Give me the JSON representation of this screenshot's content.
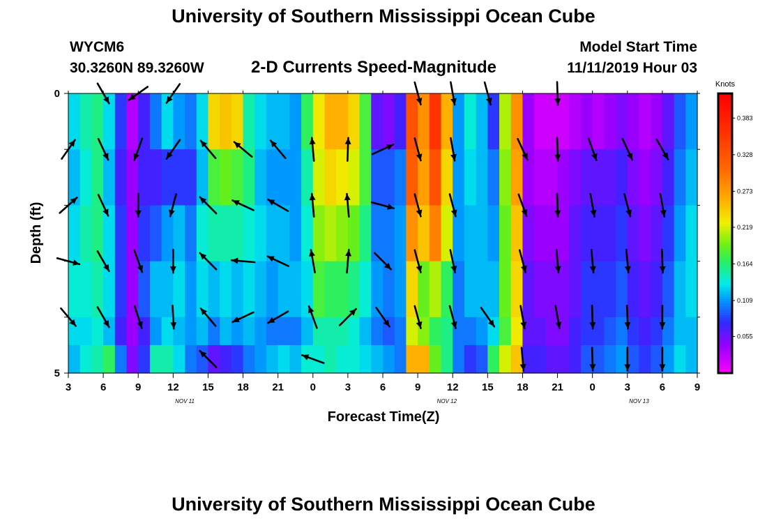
{
  "header": {
    "title": "University of Southern Mississippi Ocean Cube",
    "station_id": "WYCM6",
    "coords": "30.3260N 89.3260W",
    "subtitle": "2-D Currents Speed-Magnitude",
    "model_start_label": "Model Start Time",
    "model_start_value": "11/11/2019 Hour 03"
  },
  "footer": {
    "title": "University of Southern Mississippi Ocean Cube"
  },
  "chart_data": {
    "type": "heatmap",
    "title": "2-D Currents Speed-Magnitude",
    "xlabel": "Forecast Time(Z)",
    "ylabel": "Depth (ft)",
    "x_hours_range": [
      0,
      54
    ],
    "y_range": [
      0,
      5
    ],
    "y_ticks": [
      "0",
      "5"
    ],
    "x_ticks": [
      "3",
      "6",
      "9",
      "12",
      "15",
      "18",
      "21",
      "0",
      "3",
      "6",
      "9",
      "12",
      "15",
      "18",
      "21",
      "0",
      "3",
      "6",
      "9"
    ],
    "day_labels": [
      {
        "label": "NOV 11",
        "hour": 10
      },
      {
        "label": "NOV 12",
        "hour": 32.5
      },
      {
        "label": "NOV 13",
        "hour": 49
      }
    ],
    "colorbar": {
      "title": "Knots",
      "min": 0.0,
      "max": 0.42,
      "ticks": [
        "0.055",
        "0.109",
        "0.164",
        "0.219",
        "0.273",
        "0.328",
        "0.383"
      ],
      "tick_values": [
        0.055,
        0.109,
        0.164,
        0.219,
        0.273,
        0.328,
        0.383
      ]
    },
    "depth_layers": [
      "0-1 ft",
      "1-2 ft",
      "2-3 ft",
      "3-4 ft",
      "4-4.5 ft",
      "4.5-5 ft"
    ],
    "speed_by_hour": [
      [
        0.13,
        0.12,
        0.13,
        0.14,
        0.13,
        0.12
      ],
      [
        0.15,
        0.14,
        0.15,
        0.14,
        0.13,
        0.14
      ],
      [
        0.16,
        0.16,
        0.16,
        0.15,
        0.14,
        0.15
      ],
      [
        0.13,
        0.12,
        0.13,
        0.13,
        0.12,
        0.17
      ],
      [
        0.08,
        0.07,
        0.08,
        0.08,
        0.07,
        0.1
      ],
      [
        0.03,
        0.04,
        0.04,
        0.04,
        0.04,
        0.05
      ],
      [
        0.07,
        0.07,
        0.08,
        0.09,
        0.07,
        0.08
      ],
      [
        0.1,
        0.07,
        0.09,
        0.12,
        0.11,
        0.15
      ],
      [
        0.13,
        0.08,
        0.11,
        0.12,
        0.13,
        0.15
      ],
      [
        0.11,
        0.08,
        0.12,
        0.13,
        0.12,
        0.13
      ],
      [
        0.1,
        0.08,
        0.1,
        0.11,
        0.11,
        0.1
      ],
      [
        0.13,
        0.12,
        0.14,
        0.13,
        0.12,
        0.09
      ],
      [
        0.24,
        0.18,
        0.15,
        0.12,
        0.1,
        0.06
      ],
      [
        0.25,
        0.19,
        0.15,
        0.13,
        0.12,
        0.07
      ],
      [
        0.24,
        0.18,
        0.15,
        0.12,
        0.11,
        0.08
      ],
      [
        0.15,
        0.16,
        0.14,
        0.13,
        0.12,
        0.1
      ],
      [
        0.13,
        0.12,
        0.13,
        0.12,
        0.11,
        0.11
      ],
      [
        0.12,
        0.11,
        0.12,
        0.11,
        0.1,
        0.12
      ],
      [
        0.12,
        0.11,
        0.12,
        0.12,
        0.1,
        0.13
      ],
      [
        0.11,
        0.11,
        0.11,
        0.12,
        0.1,
        0.12
      ],
      [
        0.17,
        0.15,
        0.14,
        0.13,
        0.12,
        0.14
      ],
      [
        0.23,
        0.22,
        0.2,
        0.18,
        0.15,
        0.14
      ],
      [
        0.26,
        0.24,
        0.21,
        0.17,
        0.15,
        0.15
      ],
      [
        0.26,
        0.23,
        0.2,
        0.17,
        0.15,
        0.14
      ],
      [
        0.24,
        0.22,
        0.19,
        0.16,
        0.14,
        0.14
      ],
      [
        0.18,
        0.18,
        0.16,
        0.14,
        0.12,
        0.13
      ],
      [
        0.06,
        0.09,
        0.1,
        0.11,
        0.1,
        0.12
      ],
      [
        0.05,
        0.09,
        0.1,
        0.1,
        0.09,
        0.11
      ],
      [
        0.07,
        0.1,
        0.11,
        0.11,
        0.1,
        0.1
      ],
      [
        0.33,
        0.32,
        0.28,
        0.24,
        0.22,
        0.26
      ],
      [
        0.28,
        0.27,
        0.25,
        0.19,
        0.2,
        0.26
      ],
      [
        0.36,
        0.33,
        0.29,
        0.21,
        0.17,
        0.19
      ],
      [
        0.26,
        0.24,
        0.22,
        0.17,
        0.16,
        0.16
      ],
      [
        0.11,
        0.11,
        0.11,
        0.1,
        0.1,
        0.1
      ],
      [
        0.14,
        0.13,
        0.12,
        0.12,
        0.1,
        0.08
      ],
      [
        0.12,
        0.12,
        0.12,
        0.12,
        0.11,
        0.09
      ],
      [
        0.08,
        0.1,
        0.11,
        0.12,
        0.13,
        0.17
      ],
      [
        0.21,
        0.2,
        0.19,
        0.19,
        0.18,
        0.22
      ],
      [
        0.28,
        0.27,
        0.25,
        0.24,
        0.23,
        0.25
      ],
      [
        0.04,
        0.04,
        0.05,
        0.06,
        0.06,
        0.07
      ],
      [
        0.02,
        0.03,
        0.04,
        0.05,
        0.06,
        0.07
      ],
      [
        0.02,
        0.03,
        0.04,
        0.05,
        0.05,
        0.06
      ],
      [
        0.02,
        0.04,
        0.04,
        0.05,
        0.05,
        0.06
      ],
      [
        0.03,
        0.05,
        0.06,
        0.06,
        0.07,
        0.07
      ],
      [
        0.04,
        0.06,
        0.07,
        0.08,
        0.08,
        0.09
      ],
      [
        0.03,
        0.06,
        0.07,
        0.08,
        0.08,
        0.09
      ],
      [
        0.04,
        0.06,
        0.07,
        0.08,
        0.09,
        0.1
      ],
      [
        0.05,
        0.07,
        0.08,
        0.09,
        0.1,
        0.11
      ],
      [
        0.04,
        0.05,
        0.06,
        0.07,
        0.08,
        0.09
      ],
      [
        0.03,
        0.04,
        0.05,
        0.06,
        0.07,
        0.08
      ],
      [
        0.04,
        0.05,
        0.06,
        0.07,
        0.08,
        0.09
      ],
      [
        0.06,
        0.07,
        0.08,
        0.09,
        0.1,
        0.11
      ],
      [
        0.09,
        0.1,
        0.11,
        0.12,
        0.12,
        0.13
      ],
      [
        0.11,
        0.12,
        0.13,
        0.13,
        0.12,
        0.12
      ]
    ],
    "vectors": [
      {
        "hour": 0,
        "depth": 1.0,
        "dir": 35,
        "spd": 0.13
      },
      {
        "hour": 0,
        "depth": 2.0,
        "dir": 48,
        "spd": 0.14
      },
      {
        "hour": 0,
        "depth": 3.0,
        "dir": 105,
        "spd": 0.14
      },
      {
        "hour": 0,
        "depth": 4.0,
        "dir": 140,
        "spd": 0.13
      },
      {
        "hour": 3,
        "depth": 0.0,
        "dir": 150,
        "spd": 0.05
      },
      {
        "hour": 3,
        "depth": 1.0,
        "dir": 155,
        "spd": 0.07
      },
      {
        "hour": 3,
        "depth": 2.0,
        "dir": 155,
        "spd": 0.08
      },
      {
        "hour": 3,
        "depth": 3.0,
        "dir": 150,
        "spd": 0.08
      },
      {
        "hour": 3,
        "depth": 4.0,
        "dir": 150,
        "spd": 0.07
      },
      {
        "hour": 6,
        "depth": 0.0,
        "dir": 235,
        "spd": 0.11
      },
      {
        "hour": 6,
        "depth": 1.0,
        "dir": 200,
        "spd": 0.08
      },
      {
        "hour": 6,
        "depth": 2.0,
        "dir": 180,
        "spd": 0.1
      },
      {
        "hour": 6,
        "depth": 3.0,
        "dir": 160,
        "spd": 0.11
      },
      {
        "hour": 6,
        "depth": 4.0,
        "dir": 162,
        "spd": 0.11
      },
      {
        "hour": 9,
        "depth": 0.0,
        "dir": 215,
        "spd": 0.11
      },
      {
        "hour": 9,
        "depth": 1.0,
        "dir": 215,
        "spd": 0.12
      },
      {
        "hour": 9,
        "depth": 2.0,
        "dir": 195,
        "spd": 0.14
      },
      {
        "hour": 9,
        "depth": 3.0,
        "dir": 180,
        "spd": 0.13
      },
      {
        "hour": 9,
        "depth": 4.0,
        "dir": 177,
        "spd": 0.12
      },
      {
        "hour": 12,
        "depth": 1.0,
        "dir": 320,
        "spd": 0.18
      },
      {
        "hour": 12,
        "depth": 2.0,
        "dir": 315,
        "spd": 0.15
      },
      {
        "hour": 12,
        "depth": 3.0,
        "dir": 315,
        "spd": 0.12
      },
      {
        "hour": 12,
        "depth": 4.0,
        "dir": 320,
        "spd": 0.1
      },
      {
        "hour": 12,
        "depth": 4.75,
        "dir": 315,
        "spd": 0.06
      },
      {
        "hour": 15,
        "depth": 1.0,
        "dir": 310,
        "spd": 0.16
      },
      {
        "hour": 15,
        "depth": 2.0,
        "dir": 295,
        "spd": 0.13
      },
      {
        "hour": 15,
        "depth": 3.0,
        "dir": 275,
        "spd": 0.12
      },
      {
        "hour": 15,
        "depth": 4.0,
        "dir": 245,
        "spd": 0.11
      },
      {
        "hour": 18,
        "depth": 1.0,
        "dir": 320,
        "spd": 0.11
      },
      {
        "hour": 18,
        "depth": 2.0,
        "dir": 300,
        "spd": 0.11
      },
      {
        "hour": 18,
        "depth": 3.0,
        "dir": 295,
        "spd": 0.12
      },
      {
        "hour": 18,
        "depth": 4.0,
        "dir": 240,
        "spd": 0.1
      },
      {
        "hour": 21,
        "depth": 4.75,
        "dir": 290,
        "spd": 0.14
      },
      {
        "hour": 21,
        "depth": 1.0,
        "dir": 355,
        "spd": 0.22
      },
      {
        "hour": 21,
        "depth": 2.0,
        "dir": 355,
        "spd": 0.21
      },
      {
        "hour": 21,
        "depth": 3.0,
        "dir": 350,
        "spd": 0.18
      },
      {
        "hour": 21,
        "depth": 4.0,
        "dir": 340,
        "spd": 0.15
      },
      {
        "hour": 24,
        "depth": 1.0,
        "dir": 2,
        "spd": 0.24
      },
      {
        "hour": 24,
        "depth": 2.0,
        "dir": 355,
        "spd": 0.21
      },
      {
        "hour": 24,
        "depth": 3.0,
        "dir": 5,
        "spd": 0.17
      },
      {
        "hour": 24,
        "depth": 4.0,
        "dir": 45,
        "spd": 0.15
      },
      {
        "hour": 27,
        "depth": 1.0,
        "dir": 65,
        "spd": 0.09
      },
      {
        "hour": 27,
        "depth": 2.0,
        "dir": 105,
        "spd": 0.1
      },
      {
        "hour": 27,
        "depth": 3.0,
        "dir": 135,
        "spd": 0.11
      },
      {
        "hour": 27,
        "depth": 4.0,
        "dir": 145,
        "spd": 0.1
      },
      {
        "hour": 30,
        "depth": 0.0,
        "dir": 165,
        "spd": 0.32
      },
      {
        "hour": 30,
        "depth": 1.0,
        "dir": 165,
        "spd": 0.32
      },
      {
        "hour": 30,
        "depth": 2.0,
        "dir": 165,
        "spd": 0.28
      },
      {
        "hour": 30,
        "depth": 3.0,
        "dir": 165,
        "spd": 0.24
      },
      {
        "hour": 30,
        "depth": 4.0,
        "dir": 165,
        "spd": 0.22
      },
      {
        "hour": 33,
        "depth": 0.0,
        "dir": 170,
        "spd": 0.33
      },
      {
        "hour": 33,
        "depth": 1.0,
        "dir": 170,
        "spd": 0.33
      },
      {
        "hour": 33,
        "depth": 2.0,
        "dir": 165,
        "spd": 0.29
      },
      {
        "hour": 33,
        "depth": 3.0,
        "dir": 168,
        "spd": 0.21
      },
      {
        "hour": 33,
        "depth": 4.0,
        "dir": 165,
        "spd": 0.17
      },
      {
        "hour": 36,
        "depth": 0.0,
        "dir": 165,
        "spd": 0.12
      },
      {
        "hour": 36,
        "depth": 4.0,
        "dir": 145,
        "spd": 0.12
      },
      {
        "hour": 39,
        "depth": 1.0,
        "dir": 155,
        "spd": 0.2
      },
      {
        "hour": 39,
        "depth": 2.0,
        "dir": 160,
        "spd": 0.2
      },
      {
        "hour": 39,
        "depth": 3.0,
        "dir": 165,
        "spd": 0.19
      },
      {
        "hour": 39,
        "depth": 4.0,
        "dir": 170,
        "spd": 0.18
      },
      {
        "hour": 39,
        "depth": 4.75,
        "dir": 175,
        "spd": 0.22
      },
      {
        "hour": 42,
        "depth": 0.0,
        "dir": 178,
        "spd": 0.03
      },
      {
        "hour": 42,
        "depth": 1.0,
        "dir": 178,
        "spd": 0.03
      },
      {
        "hour": 42,
        "depth": 2.0,
        "dir": 178,
        "spd": 0.04
      },
      {
        "hour": 42,
        "depth": 3.0,
        "dir": 175,
        "spd": 0.05
      },
      {
        "hour": 42,
        "depth": 4.0,
        "dir": 170,
        "spd": 0.06
      },
      {
        "hour": 45,
        "depth": 1.0,
        "dir": 160,
        "spd": 0.05
      },
      {
        "hour": 45,
        "depth": 2.0,
        "dir": 170,
        "spd": 0.06
      },
      {
        "hour": 45,
        "depth": 3.0,
        "dir": 175,
        "spd": 0.07
      },
      {
        "hour": 45,
        "depth": 4.0,
        "dir": 178,
        "spd": 0.08
      },
      {
        "hour": 45,
        "depth": 4.75,
        "dir": 178,
        "spd": 0.1
      },
      {
        "hour": 48,
        "depth": 1.0,
        "dir": 155,
        "spd": 0.06
      },
      {
        "hour": 48,
        "depth": 2.0,
        "dir": 165,
        "spd": 0.07
      },
      {
        "hour": 48,
        "depth": 3.0,
        "dir": 175,
        "spd": 0.08
      },
      {
        "hour": 48,
        "depth": 4.0,
        "dir": 178,
        "spd": 0.09
      },
      {
        "hour": 48,
        "depth": 4.75,
        "dir": 180,
        "spd": 0.11
      },
      {
        "hour": 51,
        "depth": 1.0,
        "dir": 150,
        "spd": 0.05
      },
      {
        "hour": 51,
        "depth": 2.0,
        "dir": 170,
        "spd": 0.06
      },
      {
        "hour": 51,
        "depth": 3.0,
        "dir": 178,
        "spd": 0.07
      },
      {
        "hour": 51,
        "depth": 4.0,
        "dir": 180,
        "spd": 0.08
      },
      {
        "hour": 51,
        "depth": 4.75,
        "dir": 180,
        "spd": 0.09
      }
    ]
  }
}
